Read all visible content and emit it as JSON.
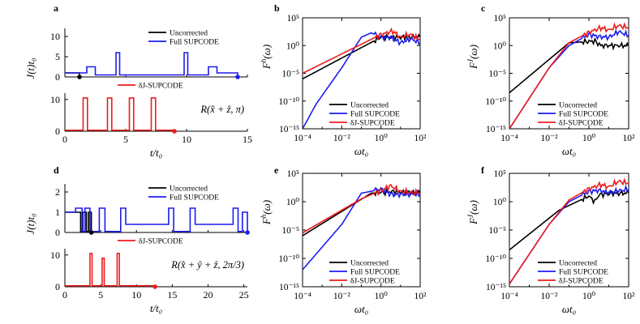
{
  "figure": {
    "colors": {
      "black": "#000000",
      "blue": "#1c1cf0",
      "red": "#ee1c1c"
    }
  },
  "chart_data": [
    {
      "panel": "a",
      "type": "line",
      "ylabel": "J(t)t₀",
      "xlabel": "t/t₀",
      "rotation": "R(x̂ + ẑ, π)",
      "top": {
        "ylim": [
          0,
          12
        ],
        "yticks": [
          "0",
          "5",
          "10"
        ],
        "legend": [
          "Uncorrected",
          "Full SUPCODE"
        ],
        "series": [
          {
            "name": "Uncorrected",
            "color": "black",
            "points": [
              [
                0,
                1
              ],
              [
                1.2,
                1
              ],
              [
                1.2,
                0
              ]
            ]
          },
          {
            "name": "Full SUPCODE",
            "color": "blue",
            "points": [
              [
                0,
                1
              ],
              [
                1.8,
                1
              ],
              [
                1.8,
                2.5
              ],
              [
                2.5,
                2.5
              ],
              [
                2.5,
                0.5
              ],
              [
                4.2,
                0.5
              ],
              [
                4.2,
                6
              ],
              [
                4.5,
                6
              ],
              [
                4.5,
                0.5
              ],
              [
                9.8,
                0.5
              ],
              [
                9.8,
                6
              ],
              [
                10.1,
                6
              ],
              [
                10.1,
                0.5
              ],
              [
                11.8,
                0.5
              ],
              [
                11.8,
                2.5
              ],
              [
                12.5,
                2.5
              ],
              [
                12.5,
                1
              ],
              [
                14.2,
                1
              ],
              [
                14.2,
                0
              ]
            ]
          }
        ]
      },
      "bottom": {
        "ylim": [
          0,
          12
        ],
        "yticks": [
          "0",
          "10"
        ],
        "legend": [
          "δJ-SUPCODE"
        ],
        "series": [
          {
            "name": "δJ-SUPCODE",
            "color": "red",
            "points": [
              [
                0,
                0.3
              ],
              [
                1.5,
                0.3
              ],
              [
                1.5,
                10.5
              ],
              [
                1.85,
                10.5
              ],
              [
                1.85,
                0.3
              ],
              [
                3.5,
                0.3
              ],
              [
                3.5,
                10.5
              ],
              [
                3.85,
                10.5
              ],
              [
                3.85,
                0.3
              ],
              [
                5.3,
                0.3
              ],
              [
                5.3,
                10.5
              ],
              [
                5.65,
                10.5
              ],
              [
                5.65,
                0.3
              ],
              [
                7.1,
                0.3
              ],
              [
                7.1,
                10.5
              ],
              [
                7.45,
                10.5
              ],
              [
                7.45,
                0.3
              ],
              [
                9,
                0.3
              ],
              [
                9,
                0
              ]
            ]
          }
        ]
      },
      "xlim": [
        0,
        15
      ],
      "xticks": [
        "0",
        "5",
        "10",
        "15"
      ],
      "end_markers": [
        {
          "series": "Uncorrected",
          "color": "black",
          "x": 1.2,
          "y": 0
        },
        {
          "series": "Full SUPCODE",
          "color": "blue",
          "x": 14.2,
          "y": 0
        },
        {
          "series": "δJ-SUPCODE",
          "color": "red",
          "x": 9.0,
          "y": 0
        }
      ]
    },
    {
      "panel": "d",
      "type": "line",
      "ylabel": "J(t)t₀",
      "xlabel": "t/t₀",
      "rotation": "R(x̂ + ŷ + ẑ, 2π/3)",
      "top": {
        "ylim": [
          0,
          2.4
        ],
        "yticks": [
          "0",
          "1",
          "2"
        ],
        "legend": [
          "Uncorrected",
          "Full SUPCODE"
        ],
        "series": [
          {
            "name": "Uncorrected",
            "color": "black",
            "points": [
              [
                0,
                1
              ],
              [
                2.2,
                1
              ],
              [
                2.2,
                0.05
              ],
              [
                2.5,
                0.05
              ],
              [
                2.5,
                1
              ],
              [
                3.0,
                1
              ],
              [
                3.0,
                0.05
              ],
              [
                3.3,
                0.05
              ],
              [
                3.3,
                1
              ],
              [
                3.7,
                1
              ],
              [
                3.7,
                0
              ]
            ]
          },
          {
            "name": "Full SUPCODE",
            "color": "blue",
            "points": [
              [
                0,
                1
              ],
              [
                1.5,
                1
              ],
              [
                1.5,
                1.2
              ],
              [
                2.4,
                1.2
              ],
              [
                2.4,
                0.05
              ],
              [
                2.8,
                0.05
              ],
              [
                2.8,
                1.2
              ],
              [
                3.5,
                1.2
              ],
              [
                3.5,
                0.05
              ],
              [
                4.8,
                0.05
              ],
              [
                4.8,
                1.2
              ],
              [
                5.6,
                1.2
              ],
              [
                5.6,
                0.05
              ],
              [
                7.8,
                0.05
              ],
              [
                7.8,
                1.2
              ],
              [
                8.5,
                1.2
              ],
              [
                8.5,
                0.4
              ],
              [
                14.5,
                0.4
              ],
              [
                14.5,
                1.2
              ],
              [
                15.2,
                1.2
              ],
              [
                15.2,
                0.05
              ],
              [
                17.5,
                0.05
              ],
              [
                17.5,
                1.2
              ],
              [
                18.2,
                1.2
              ],
              [
                18.2,
                0.4
              ],
              [
                23.5,
                0.4
              ],
              [
                23.5,
                1.2
              ],
              [
                24.2,
                1.2
              ],
              [
                24.2,
                0.05
              ],
              [
                24.8,
                0.05
              ],
              [
                24.8,
                1
              ],
              [
                25.5,
                1
              ],
              [
                25.5,
                0
              ]
            ]
          }
        ]
      },
      "bottom": {
        "ylim": [
          0,
          12
        ],
        "yticks": [
          "0",
          "10"
        ],
        "legend": [
          "δJ-SUPCODE"
        ],
        "series": [
          {
            "name": "δJ-SUPCODE",
            "color": "red",
            "points": [
              [
                0,
                0.3
              ],
              [
                3.5,
                0.3
              ],
              [
                3.5,
                10.5
              ],
              [
                3.8,
                10.5
              ],
              [
                3.8,
                0.3
              ],
              [
                5.2,
                0.3
              ],
              [
                5.2,
                9
              ],
              [
                5.5,
                9
              ],
              [
                5.5,
                0.3
              ],
              [
                7.3,
                0.3
              ],
              [
                7.3,
                10.5
              ],
              [
                7.6,
                10.5
              ],
              [
                7.6,
                0.3
              ],
              [
                12.6,
                0.3
              ],
              [
                12.6,
                0
              ]
            ]
          }
        ]
      },
      "xlim": [
        0,
        25.5
      ],
      "xticks": [
        "0",
        "5",
        "10",
        "15",
        "20",
        "25"
      ],
      "end_markers": [
        {
          "series": "Uncorrected",
          "color": "black",
          "x": 3.7,
          "y": 0
        },
        {
          "series": "Full SUPCODE",
          "color": "blue",
          "x": 25.5,
          "y": 0
        },
        {
          "series": "δJ-SUPCODE",
          "color": "red",
          "x": 12.6,
          "y": 0
        }
      ]
    },
    {
      "panel": "b",
      "type": "line",
      "scale": "loglog",
      "ylabel": "F^h(ω)",
      "xlabel": "ωt₀",
      "xlim_exp": [
        -4,
        2
      ],
      "ylim_exp": [
        -15,
        5
      ],
      "xticks": [
        "10⁻⁴",
        "10⁻²",
        "10⁰",
        "10²"
      ],
      "yticks": [
        "10⁻¹⁵",
        "10⁻¹⁰",
        "10⁻⁵",
        "10⁰",
        "10⁵"
      ],
      "legend": [
        "Uncorrected",
        "Full SUPCODE",
        "δJ-SUPCODE"
      ],
      "series": [
        {
          "name": "Uncorrected",
          "color": "black",
          "log_points": [
            [
              -4,
              -6
            ],
            [
              0,
              1.5
            ],
            [
              2,
              1.5
            ]
          ]
        },
        {
          "name": "Full SUPCODE",
          "color": "blue",
          "log_points": [
            [
              -4,
              -15
            ],
            [
              -3.3,
              -10.5
            ],
            [
              -2,
              -4
            ],
            [
              -1,
              1.5
            ],
            [
              -0.5,
              2.3
            ],
            [
              0,
              1.5
            ],
            [
              0.5,
              1.5
            ],
            [
              1,
              0.5
            ],
            [
              1.5,
              1.2
            ],
            [
              2,
              0.5
            ]
          ]
        },
        {
          "name": "δJ-SUPCODE",
          "color": "red",
          "log_points": [
            [
              -4,
              -5
            ],
            [
              0,
              2
            ],
            [
              0.6,
              2.6
            ],
            [
              1,
              1.5
            ],
            [
              1.5,
              2.0
            ],
            [
              2,
              1.0
            ]
          ]
        }
      ]
    },
    {
      "panel": "c",
      "type": "line",
      "scale": "loglog",
      "ylabel": "F^J(ω)",
      "xlabel": "ωt₀",
      "xlim_exp": [
        -4,
        2
      ],
      "ylim_exp": [
        -15,
        5
      ],
      "xticks": [
        "10⁻⁴",
        "10⁻²",
        "10⁰",
        "10²"
      ],
      "yticks": [
        "10⁻¹⁵",
        "10⁻¹⁰",
        "10⁻⁵",
        "10⁰",
        "10⁵"
      ],
      "legend": [
        "Uncorrected",
        "Full SUPCODE",
        "δJ-SUPCODE"
      ],
      "series": [
        {
          "name": "Uncorrected",
          "color": "black",
          "log_points": [
            [
              -4,
              -8.5
            ],
            [
              -1,
              0.5
            ],
            [
              0.3,
              0.8
            ],
            [
              0.6,
              0
            ],
            [
              2,
              0
            ]
          ]
        },
        {
          "name": "Full SUPCODE",
          "color": "blue",
          "log_points": [
            [
              -4,
              -15
            ],
            [
              -2,
              -4
            ],
            [
              -1,
              0
            ],
            [
              0,
              2
            ],
            [
              0.5,
              1.6
            ],
            [
              1,
              1.5
            ],
            [
              1.5,
              2.5
            ],
            [
              2,
              1.8
            ]
          ]
        },
        {
          "name": "δJ-SUPCODE",
          "color": "red",
          "log_points": [
            [
              -4,
              -15
            ],
            [
              -2,
              -4
            ],
            [
              -1,
              0.5
            ],
            [
              0,
              2.4
            ],
            [
              0.6,
              3.2
            ],
            [
              1,
              2.8
            ],
            [
              1.5,
              3.6
            ],
            [
              2,
              3.2
            ]
          ]
        }
      ]
    },
    {
      "panel": "e",
      "type": "line",
      "scale": "loglog",
      "ylabel": "F^h(ω)",
      "xlabel": "ωt₀",
      "xlim_exp": [
        -4,
        2
      ],
      "ylim_exp": [
        -15,
        5
      ],
      "xticks": [
        "10⁻⁴",
        "10⁻²",
        "10⁰",
        "10²"
      ],
      "yticks": [
        "10⁻¹⁵",
        "10⁻¹⁰",
        "10⁻⁵",
        "10⁰",
        "10⁵"
      ],
      "legend": [
        "Uncorrected",
        "Full SUPCODE",
        "δJ-SUPCODE"
      ],
      "series": [
        {
          "name": "Uncorrected",
          "color": "black",
          "log_points": [
            [
              -4,
              -6
            ],
            [
              -0.5,
              1.5
            ],
            [
              0.5,
              1.8
            ],
            [
              2,
              1.5
            ]
          ]
        },
        {
          "name": "Full SUPCODE",
          "color": "blue",
          "log_points": [
            [
              -4,
              -12
            ],
            [
              -2,
              -4
            ],
            [
              -1,
              1.5
            ],
            [
              0,
              2.2
            ],
            [
              0.5,
              1.3
            ],
            [
              2,
              1.3
            ]
          ]
        },
        {
          "name": "δJ-SUPCODE",
          "color": "red",
          "log_points": [
            [
              -4,
              -5.5
            ],
            [
              -1,
              0.5
            ],
            [
              0,
              2.0
            ],
            [
              0.5,
              2.8
            ],
            [
              1,
              1.8
            ],
            [
              2,
              1.5
            ]
          ]
        }
      ]
    },
    {
      "panel": "f",
      "type": "line",
      "scale": "loglog",
      "ylabel": "F^J(ω)",
      "xlabel": "ωt₀",
      "xlim_exp": [
        -4,
        2
      ],
      "ylim_exp": [
        -15,
        5
      ],
      "xticks": [
        "10⁻⁴",
        "10⁻²",
        "10⁰",
        "10²"
      ],
      "yticks": [
        "10⁻¹⁵",
        "10⁻¹⁰",
        "10⁻⁵",
        "10⁰",
        "10⁵"
      ],
      "legend": [
        "Uncorrected",
        "Full SUPCODE",
        "δJ-SUPCODE"
      ],
      "series": [
        {
          "name": "Uncorrected",
          "color": "black",
          "log_points": [
            [
              -4,
              -8.5
            ],
            [
              -1.5,
              -1.5
            ],
            [
              0,
              1.0
            ],
            [
              0.3,
              0
            ],
            [
              0.5,
              1.2
            ],
            [
              1,
              1.5
            ],
            [
              2,
              1.5
            ]
          ]
        },
        {
          "name": "Full SUPCODE",
          "color": "blue",
          "log_points": [
            [
              -4,
              -14.5
            ],
            [
              -2,
              -4
            ],
            [
              -1,
              0
            ],
            [
              0,
              1.8
            ],
            [
              0.5,
              2.0
            ],
            [
              1,
              1.6
            ],
            [
              2,
              2.2
            ]
          ]
        },
        {
          "name": "δJ-SUPCODE",
          "color": "red",
          "log_points": [
            [
              -4,
              -14.5
            ],
            [
              -2,
              -4
            ],
            [
              -1,
              0.3
            ],
            [
              0,
              2.3
            ],
            [
              0.6,
              3.0
            ],
            [
              1,
              2.6
            ],
            [
              1.5,
              3.6
            ],
            [
              2,
              3.2
            ]
          ]
        }
      ]
    }
  ]
}
